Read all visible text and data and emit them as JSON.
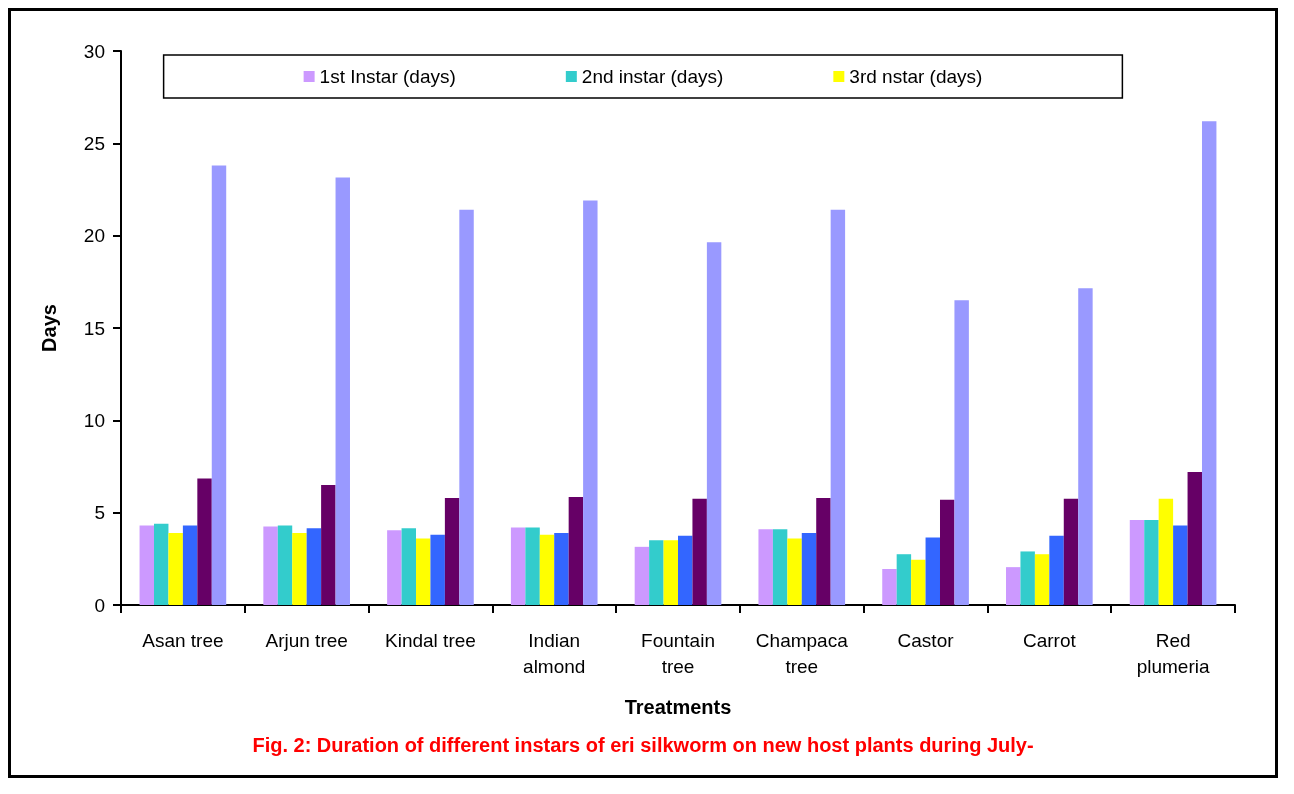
{
  "chart_data": {
    "type": "bar",
    "categories": [
      "Asan tree",
      "Arjun tree",
      "Kindal tree",
      "Indian\nalmond",
      "Fountain\ntree",
      "Champaca\ntree",
      "Castor",
      "Carrot",
      "Red\nplumeria"
    ],
    "series": [
      {
        "name": "1st Instar (days)",
        "color": "#cc99ff",
        "values": [
          4.3,
          4.25,
          4.05,
          4.2,
          3.15,
          4.1,
          1.95,
          2.05,
          4.6
        ]
      },
      {
        "name": "2nd instar (days)",
        "color": "#33cccc",
        "values": [
          4.4,
          4.3,
          4.15,
          4.2,
          3.5,
          4.1,
          2.75,
          2.9,
          4.6
        ]
      },
      {
        "name": "3rd nstar (days)",
        "color": "#ffff00",
        "values": [
          3.9,
          3.9,
          3.6,
          3.8,
          3.5,
          3.6,
          2.45,
          2.75,
          5.75
        ]
      },
      {
        "color": "#3366ff",
        "values": [
          4.3,
          4.15,
          3.8,
          3.9,
          3.75,
          3.9,
          3.65,
          3.75,
          4.3
        ]
      },
      {
        "color": "#660066",
        "values": [
          6.85,
          6.5,
          5.8,
          5.85,
          5.75,
          5.8,
          5.7,
          5.75,
          7.2
        ]
      },
      {
        "color": "#9999ff",
        "values": [
          23.8,
          23.15,
          21.4,
          21.9,
          19.65,
          21.4,
          16.5,
          17.15,
          26.2
        ]
      }
    ],
    "xlabel": "Treatments",
    "ylabel": "Days",
    "ylim": [
      0,
      30
    ],
    "yticks": [
      0,
      5,
      10,
      15,
      20,
      25,
      30
    ],
    "grid": false,
    "legend": "top",
    "annotations": [
      "Fig. 2: Duration of different instars of eri silkworm on new host plants during July-"
    ]
  }
}
